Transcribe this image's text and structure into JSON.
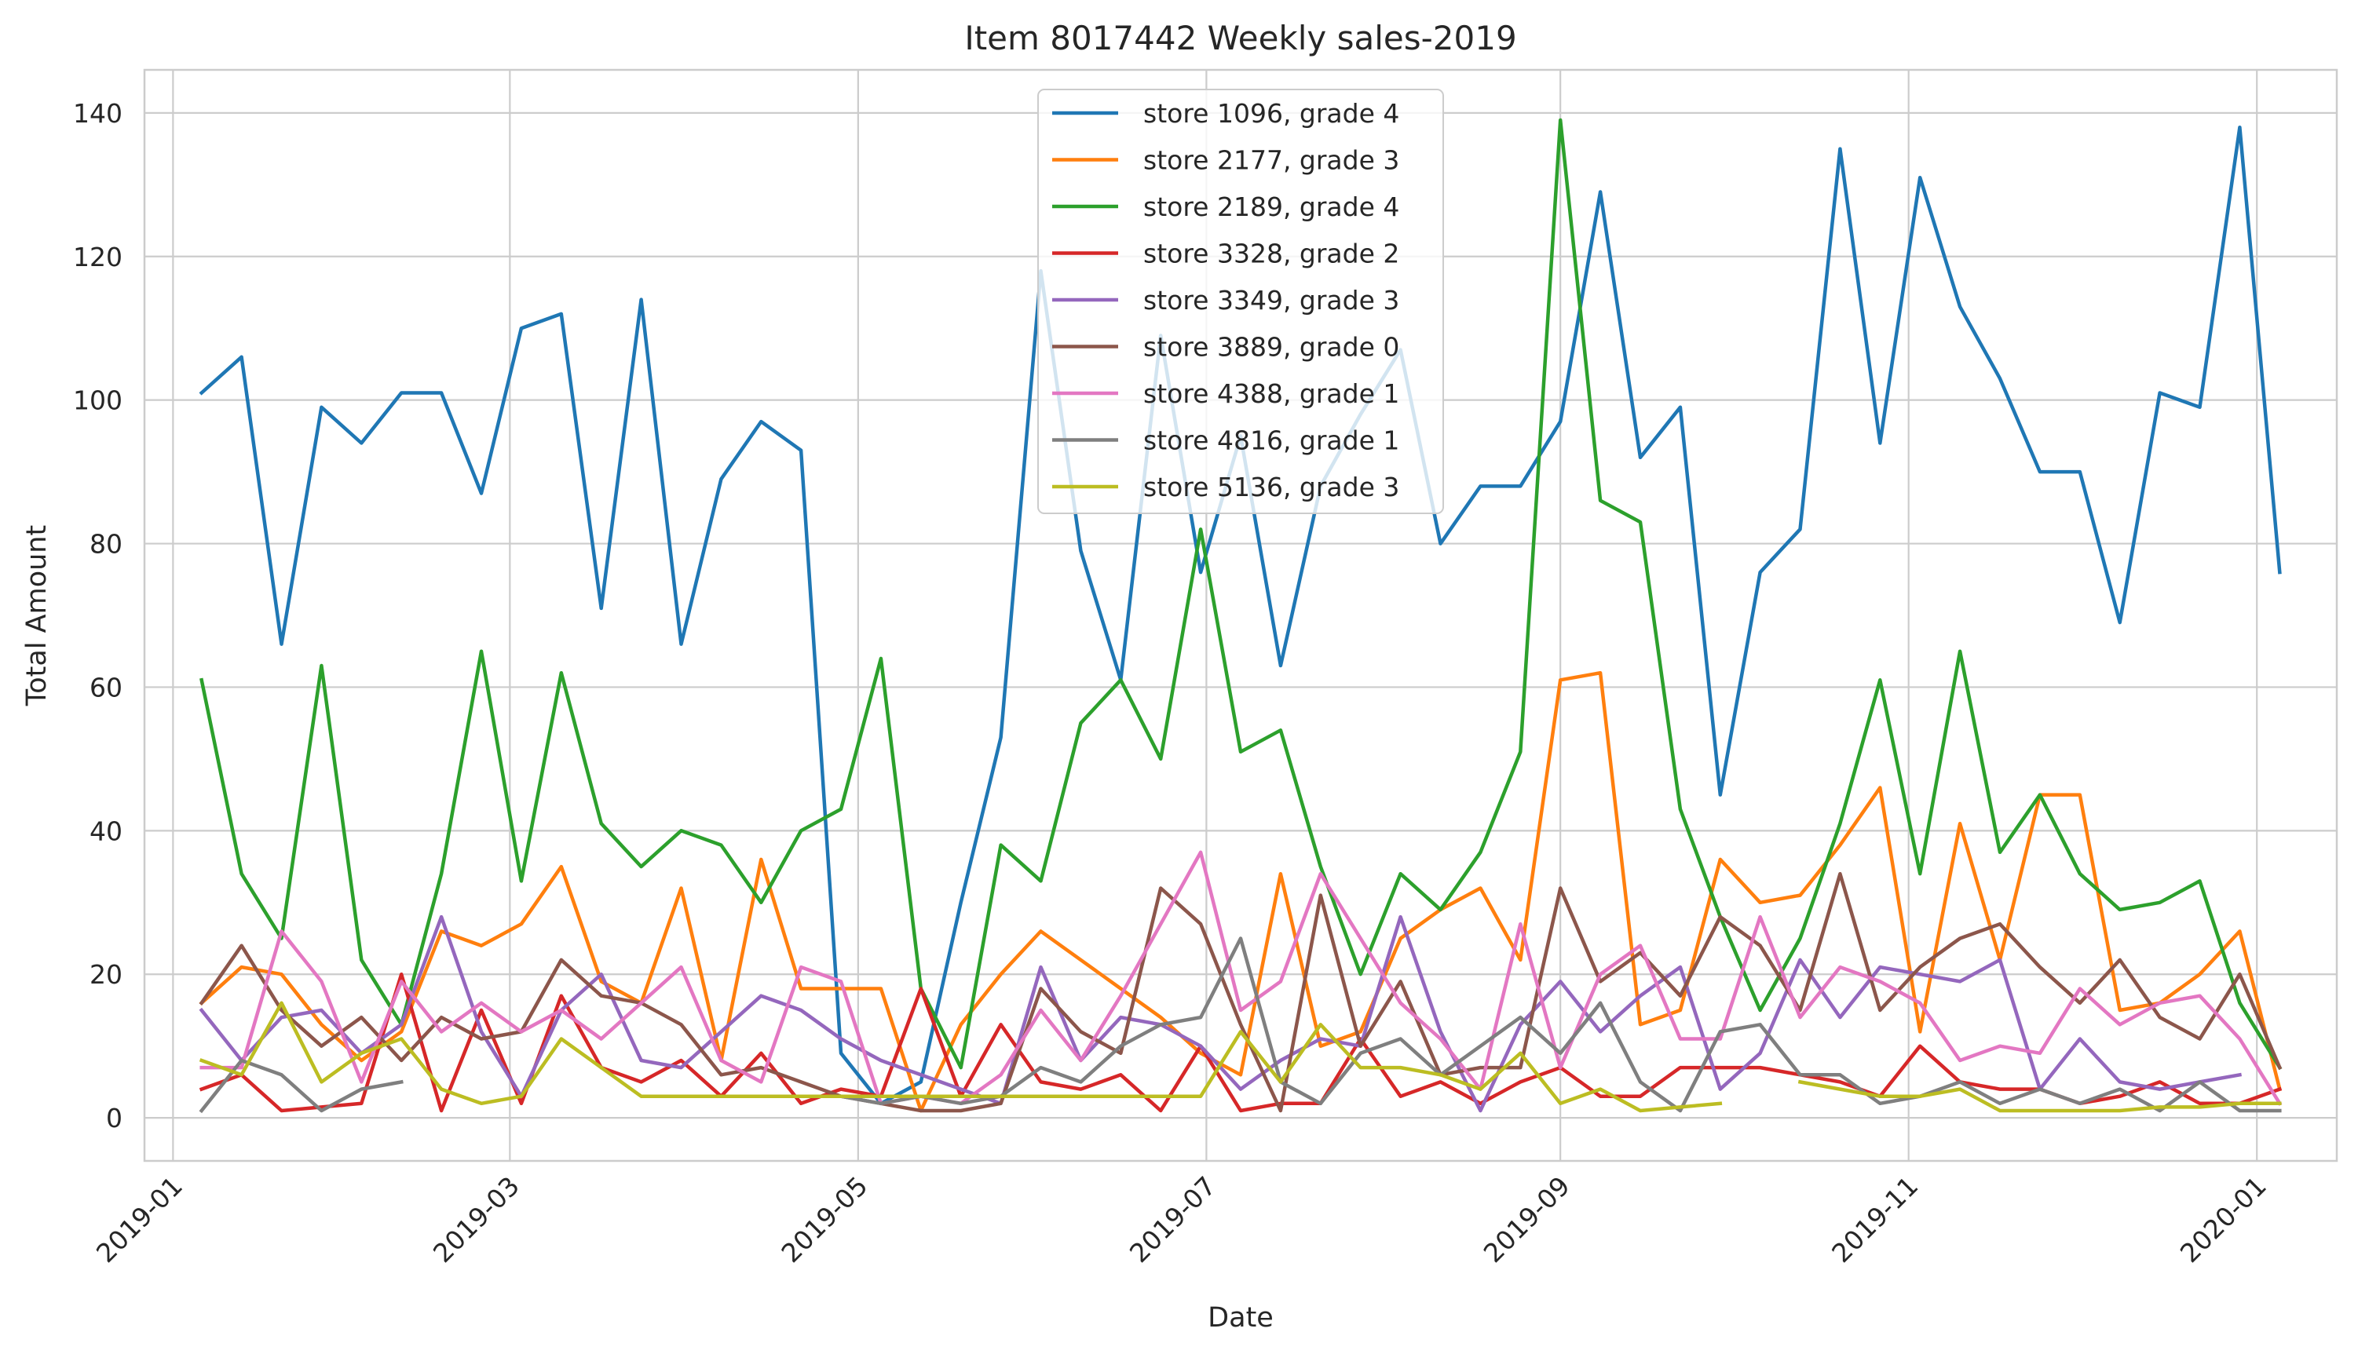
{
  "chart_data": {
    "type": "line",
    "title": "Item 8017442 Weekly sales-2019",
    "xlabel": "Date",
    "ylabel": "Total Amount",
    "xlim": [
      "2018-12-27",
      "2020-01-15"
    ],
    "ylim": [
      -6,
      146
    ],
    "x_ticks": [
      "2019-01-01",
      "2019-03-01",
      "2019-05-01",
      "2019-07-01",
      "2019-09-01",
      "2019-11-01",
      "2020-01-01"
    ],
    "x_tick_labels": [
      "2019-01",
      "2019-03",
      "2019-05",
      "2019-07",
      "2019-09",
      "2019-11",
      "2020-01"
    ],
    "y_ticks": [
      0,
      20,
      40,
      60,
      80,
      100,
      120,
      140
    ],
    "y_tick_labels": [
      "0",
      "20",
      "40",
      "60",
      "80",
      "100",
      "120",
      "140"
    ],
    "grid": true,
    "legend_position": "top-center",
    "x": [
      "2019-01-06",
      "2019-01-13",
      "2019-01-20",
      "2019-01-27",
      "2019-02-03",
      "2019-02-10",
      "2019-02-17",
      "2019-02-24",
      "2019-03-03",
      "2019-03-10",
      "2019-03-17",
      "2019-03-24",
      "2019-03-31",
      "2019-04-07",
      "2019-04-14",
      "2019-04-21",
      "2019-04-28",
      "2019-05-05",
      "2019-05-12",
      "2019-05-19",
      "2019-05-26",
      "2019-06-02",
      "2019-06-09",
      "2019-06-16",
      "2019-06-23",
      "2019-06-30",
      "2019-07-07",
      "2019-07-14",
      "2019-07-21",
      "2019-07-28",
      "2019-08-04",
      "2019-08-11",
      "2019-08-18",
      "2019-08-25",
      "2019-09-01",
      "2019-09-08",
      "2019-09-15",
      "2019-09-22",
      "2019-09-29",
      "2019-10-06",
      "2019-10-13",
      "2019-10-20",
      "2019-10-27",
      "2019-11-03",
      "2019-11-10",
      "2019-11-17",
      "2019-11-24",
      "2019-12-01",
      "2019-12-08",
      "2019-12-15",
      "2019-12-22",
      "2019-12-29",
      "2020-01-05"
    ],
    "series": [
      {
        "name": "store 1096, grade 4",
        "color": "#1f77b4",
        "values": [
          101,
          106,
          66,
          99,
          94,
          101,
          101,
          87,
          110,
          112,
          71,
          114,
          66,
          89,
          97,
          93,
          9,
          2,
          5,
          30,
          53,
          118,
          79,
          61,
          109,
          76,
          95,
          63,
          88,
          98,
          107,
          80,
          88,
          88,
          97,
          129,
          92,
          99,
          45,
          76,
          82,
          135,
          94,
          131,
          113,
          103,
          90,
          90,
          69,
          101,
          99,
          138,
          76
        ]
      },
      {
        "name": "store 2177, grade 3",
        "color": "#ff7f0e",
        "values": [
          16,
          21,
          20,
          13,
          8,
          12,
          26,
          24,
          27,
          35,
          19,
          16,
          32,
          8,
          36,
          18,
          18,
          18,
          1,
          13,
          20,
          26,
          22,
          18,
          14,
          9,
          6,
          34,
          10,
          12,
          25,
          29,
          32,
          22,
          61,
          62,
          13,
          15,
          36,
          30,
          31,
          38,
          46,
          12,
          41,
          22,
          45,
          45,
          15,
          16,
          20,
          26,
          4
        ]
      },
      {
        "name": "store 2189, grade 4",
        "color": "#2ca02c",
        "values": [
          61,
          34,
          25,
          63,
          22,
          13,
          34,
          65,
          33,
          62,
          41,
          35,
          40,
          38,
          30,
          40,
          43,
          64,
          18,
          7,
          38,
          33,
          55,
          61,
          50,
          82,
          51,
          54,
          35,
          20,
          34,
          29,
          37,
          51,
          139,
          86,
          83,
          43,
          28,
          15,
          25,
          41,
          61,
          34,
          65,
          37,
          45,
          34,
          29,
          30,
          33,
          16,
          7
        ]
      },
      {
        "name": "store 3328, grade 2",
        "color": "#d62728",
        "values": [
          4,
          6,
          1,
          1.5,
          2,
          20,
          1,
          15,
          2,
          17,
          7,
          5,
          8,
          3,
          9,
          2,
          4,
          3,
          18,
          3,
          13,
          5,
          4,
          6,
          1,
          10,
          1,
          2,
          2,
          11,
          3,
          5,
          2,
          5,
          7,
          3,
          3,
          7,
          7,
          7,
          6,
          5,
          3,
          10,
          5,
          4,
          4,
          2,
          3,
          5,
          2,
          2,
          4
        ]
      },
      {
        "name": "store 3349, grade 3",
        "color": "#9467bd",
        "values": [
          15,
          8,
          14,
          15,
          9,
          13,
          28,
          12,
          3,
          15,
          20,
          8,
          7,
          12,
          17,
          15,
          11,
          8,
          6,
          4,
          2,
          21,
          8,
          14,
          13,
          10,
          4,
          8,
          11,
          10,
          28,
          12,
          1,
          13,
          19,
          12,
          17,
          21,
          4,
          9,
          22,
          14,
          21,
          20,
          19,
          22,
          4,
          11,
          5,
          4,
          5,
          6,
          null
        ]
      },
      {
        "name": "store 3889, grade 0",
        "color": "#8c564b",
        "values": [
          16,
          24,
          15,
          10,
          14,
          8,
          14,
          11,
          12,
          22,
          17,
          16,
          13,
          6,
          7,
          5,
          3,
          2,
          1,
          1,
          2,
          18,
          12,
          9,
          32,
          27,
          13,
          1,
          31,
          10,
          19,
          6,
          7,
          7,
          32,
          19,
          23,
          17,
          28,
          24,
          15,
          34,
          15,
          21,
          25,
          27,
          21,
          16,
          22,
          14,
          11,
          20,
          7
        ]
      },
      {
        "name": "store 4388, grade 1",
        "color": "#e377c2",
        "values": [
          7,
          7,
          26,
          19,
          5,
          19,
          12,
          16,
          12,
          15,
          11,
          16,
          21,
          8,
          5,
          21,
          19,
          2,
          3,
          2,
          6,
          15,
          8,
          17,
          27,
          37,
          15,
          19,
          34,
          25,
          16,
          11,
          4,
          27,
          7,
          20,
          24,
          11,
          11,
          28,
          14,
          21,
          19,
          16,
          8,
          10,
          9,
          18,
          13,
          16,
          17,
          11,
          2
        ]
      },
      {
        "name": "store 4816, grade 1",
        "color": "#7f7f7f",
        "values": [
          1,
          8,
          6,
          1,
          4,
          5,
          null,
          null,
          null,
          null,
          null,
          null,
          null,
          null,
          null,
          null,
          3,
          2,
          3,
          2,
          3,
          7,
          5,
          10,
          13,
          14,
          25,
          5,
          2,
          9,
          11,
          6,
          10,
          14,
          9,
          16,
          5,
          1,
          12,
          13,
          6,
          6,
          2,
          3,
          5,
          2,
          4,
          2,
          4,
          1,
          5,
          1,
          1
        ]
      },
      {
        "name": "store 5136, grade 3",
        "color": "#bcbd22",
        "values": [
          8,
          6,
          16,
          5,
          9,
          11,
          4,
          2,
          3,
          11,
          7,
          3,
          3,
          3,
          3,
          3,
          3,
          3,
          3,
          3,
          3,
          3,
          3,
          3,
          3,
          3,
          12,
          5,
          13,
          7,
          7,
          6,
          4,
          9,
          2,
          4,
          1,
          1.5,
          2,
          null,
          5,
          4,
          3,
          3,
          4,
          1,
          1,
          1,
          1,
          1.5,
          1.5,
          2,
          2
        ]
      }
    ]
  }
}
